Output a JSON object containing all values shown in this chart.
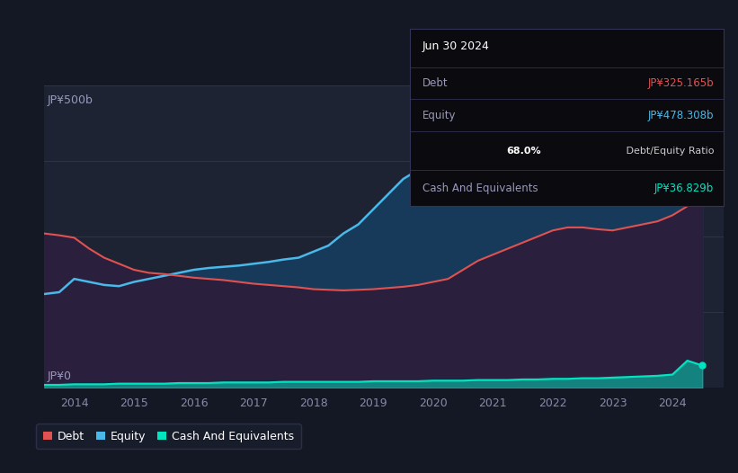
{
  "bg_color": "#141824",
  "plot_bg_color": "#1e2333",
  "grid_color": "#2e3450",
  "debt_color": "#e05252",
  "equity_color": "#4ab8e8",
  "cash_color": "#00e5c0",
  "ylabel_text": "JP¥500b",
  "y0_text": "JP¥0",
  "ylim": [
    0,
    500
  ],
  "xlim_start": 2013.5,
  "xlim_end": 2024.85,
  "xticks": [
    2014,
    2015,
    2016,
    2017,
    2018,
    2019,
    2020,
    2021,
    2022,
    2023,
    2024
  ],
  "tooltip_title": "Jun 30 2024",
  "tooltip_debt_label": "Debt",
  "tooltip_debt_value": "JP¥325.165b",
  "tooltip_equity_label": "Equity",
  "tooltip_equity_value": "JP¥478.308b",
  "tooltip_ratio": "68.0% Debt/Equity Ratio",
  "tooltip_ratio_bold": "68.0%",
  "tooltip_cash_label": "Cash And Equivalents",
  "tooltip_cash_value": "JP¥36.829b",
  "legend_debt": "Debt",
  "legend_equity": "Equity",
  "legend_cash": "Cash And Equivalents",
  "years": [
    2013.5,
    2013.75,
    2014.0,
    2014.25,
    2014.5,
    2014.75,
    2015.0,
    2015.25,
    2015.5,
    2015.75,
    2016.0,
    2016.25,
    2016.5,
    2016.75,
    2017.0,
    2017.25,
    2017.5,
    2017.75,
    2018.0,
    2018.25,
    2018.5,
    2018.75,
    2019.0,
    2019.25,
    2019.5,
    2019.75,
    2020.0,
    2020.25,
    2020.5,
    2020.75,
    2021.0,
    2021.25,
    2021.5,
    2021.75,
    2022.0,
    2022.25,
    2022.5,
    2022.75,
    2023.0,
    2023.25,
    2023.5,
    2023.75,
    2024.0,
    2024.25,
    2024.5
  ],
  "equity": [
    155,
    158,
    180,
    175,
    170,
    168,
    175,
    180,
    185,
    190,
    195,
    198,
    200,
    202,
    205,
    208,
    212,
    215,
    225,
    235,
    255,
    270,
    295,
    320,
    345,
    360,
    375,
    360,
    355,
    350,
    355,
    360,
    365,
    375,
    385,
    380,
    375,
    380,
    390,
    405,
    420,
    440,
    450,
    460,
    478
  ],
  "debt": [
    255,
    252,
    248,
    230,
    215,
    205,
    195,
    190,
    188,
    185,
    182,
    180,
    178,
    175,
    172,
    170,
    168,
    166,
    163,
    162,
    161,
    162,
    163,
    165,
    167,
    170,
    175,
    180,
    195,
    210,
    220,
    230,
    240,
    250,
    260,
    265,
    265,
    262,
    260,
    265,
    270,
    275,
    285,
    300,
    325
  ],
  "cash": [
    5,
    5,
    6,
    6,
    6,
    7,
    7,
    7,
    7,
    8,
    8,
    8,
    9,
    9,
    9,
    9,
    10,
    10,
    10,
    10,
    10,
    10,
    11,
    11,
    11,
    11,
    12,
    12,
    12,
    13,
    13,
    13,
    14,
    14,
    15,
    15,
    16,
    16,
    17,
    18,
    19,
    20,
    22,
    45,
    37
  ]
}
